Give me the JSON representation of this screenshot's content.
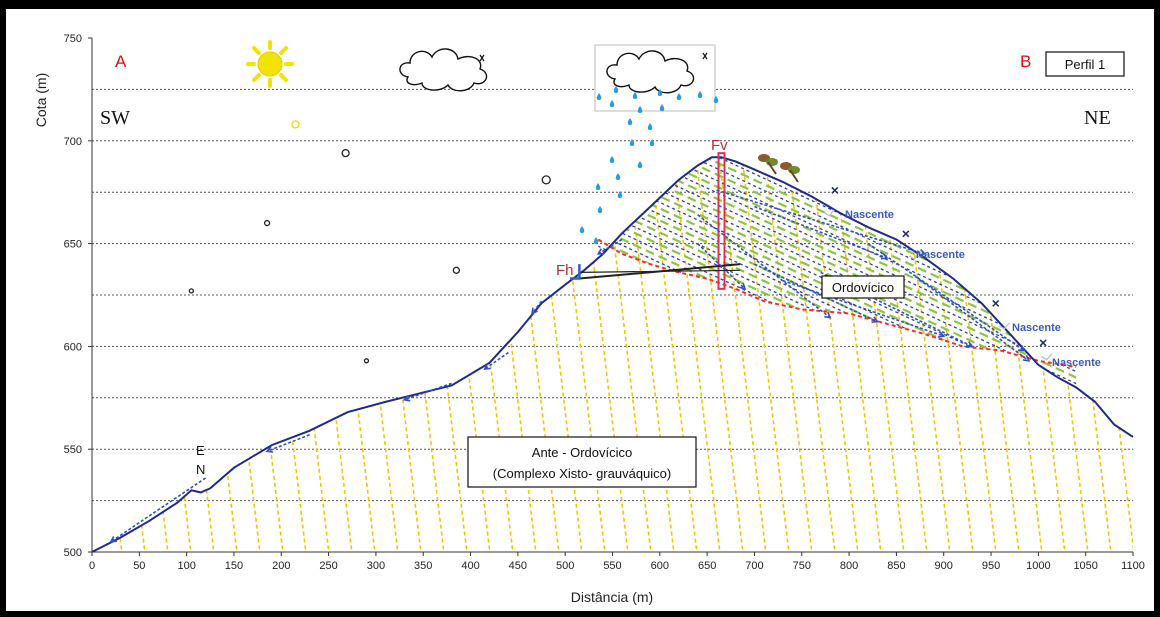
{
  "chart_data": {
    "type": "line",
    "title": "",
    "xlabel": "Distância (m)",
    "ylabel": "Cota (m)",
    "xlim": [
      0,
      1100
    ],
    "ylim": [
      500,
      750
    ],
    "x_ticks": [
      0,
      50,
      100,
      150,
      200,
      250,
      300,
      350,
      400,
      450,
      500,
      550,
      600,
      650,
      700,
      750,
      800,
      850,
      900,
      950,
      1000,
      1050,
      1100
    ],
    "y_ticks": [
      500,
      550,
      600,
      650,
      700,
      750
    ],
    "y_ticks_labeled": [
      500,
      550,
      600,
      650,
      700,
      750
    ],
    "grid": "horizontal dashed lines every 25 m",
    "series": [
      {
        "name": "",
        "color": "#1f2a8a",
        "points": [
          [
            0,
            500
          ],
          [
            30,
            507
          ],
          [
            60,
            515
          ],
          [
            90,
            524
          ],
          [
            105,
            530
          ],
          [
            115,
            529
          ],
          [
            125,
            531
          ],
          [
            150,
            541
          ],
          [
            190,
            552
          ],
          [
            230,
            559
          ],
          [
            270,
            568
          ],
          [
            310,
            573
          ],
          [
            345,
            577
          ],
          [
            380,
            581
          ],
          [
            420,
            592
          ],
          [
            450,
            607
          ],
          [
            475,
            621
          ],
          [
            500,
            630
          ],
          [
            520,
            637
          ],
          [
            540,
            645
          ],
          [
            560,
            655
          ],
          [
            590,
            668
          ],
          [
            620,
            681
          ],
          [
            640,
            688
          ],
          [
            655,
            692
          ],
          [
            665,
            692
          ],
          [
            680,
            690
          ],
          [
            700,
            686
          ],
          [
            730,
            680
          ],
          [
            760,
            673
          ],
          [
            790,
            665
          ],
          [
            820,
            658
          ],
          [
            850,
            652
          ],
          [
            880,
            643
          ],
          [
            910,
            633
          ],
          [
            940,
            621
          ],
          [
            970,
            606
          ],
          [
            1000,
            591
          ],
          [
            1020,
            585
          ],
          [
            1040,
            580
          ],
          [
            1060,
            573
          ],
          [
            1080,
            562
          ],
          [
            1100,
            556
          ]
        ]
      },
      {
        "name": "",
        "color": "#ff2a2a",
        "points": [
          [
            535,
            652
          ],
          [
            560,
            645
          ],
          [
            590,
            640
          ],
          [
            620,
            636
          ],
          [
            650,
            633
          ],
          [
            680,
            628
          ],
          [
            710,
            622
          ],
          [
            750,
            618
          ],
          [
            800,
            616
          ],
          [
            840,
            611
          ],
          [
            880,
            606
          ],
          [
            920,
            600
          ],
          [
            960,
            598
          ],
          [
            1000,
            593
          ],
          [
            1040,
            590
          ]
        ]
      }
    ],
    "annotations": {
      "corner_a": "A",
      "corner_b": "B",
      "profile_label": "Perfil  1",
      "left_side": "SW",
      "right_side": "NE",
      "en_label": "E",
      "en_label_2": "N",
      "fault_v": "Fv",
      "fault_h": "Fh",
      "upper_unit": "Ordovícico",
      "lower_unit_line1": "Ante - Ordovícico",
      "lower_unit_line2": "(Complexo Xisto- grauváquico)",
      "spring_label": "Nascente"
    },
    "spring_points": [
      [
        780,
        664
      ],
      [
        870,
        643
      ],
      [
        965,
        609
      ],
      [
        1010,
        594
      ]
    ],
    "x_markers": [
      [
        785,
        676
      ],
      [
        860,
        655
      ],
      [
        955,
        621
      ],
      [
        1005,
        602
      ]
    ],
    "scatter_dots": [
      [
        105,
        627,
        2
      ],
      [
        185,
        660,
        2.5
      ],
      [
        268,
        694,
        3.5
      ],
      [
        290,
        593,
        2
      ],
      [
        385,
        637,
        3
      ],
      [
        480,
        681,
        4
      ],
      [
        215,
        708,
        3.5
      ]
    ]
  },
  "colors": {
    "profile": "#1f2a8a",
    "contact": "#ff2a2a",
    "hatch_lower": "#f5c400",
    "hatch_upper_green": "#8cc63f",
    "hatch_upper_blue": "#2f3fae",
    "rain": "#2a9be0",
    "sun": "#f2e400",
    "fault_vertical": "#e0305a"
  },
  "icons": [
    "sun-icon",
    "cloud-icon",
    "rain-cloud-icon",
    "tree-icon"
  ]
}
